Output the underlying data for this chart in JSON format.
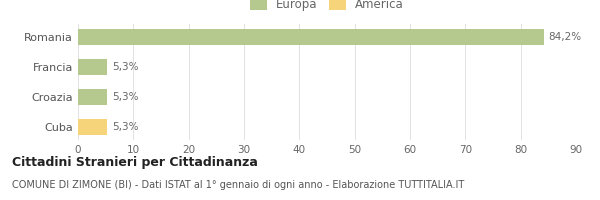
{
  "categories": [
    "Romania",
    "Francia",
    "Croazia",
    "Cuba"
  ],
  "values": [
    84.2,
    5.3,
    5.3,
    5.3
  ],
  "colors": [
    "#b5c98e",
    "#b5c98e",
    "#b5c98e",
    "#f5d47a"
  ],
  "bar_labels": [
    "84,2%",
    "5,3%",
    "5,3%",
    "5,3%"
  ],
  "xlim": [
    0,
    90
  ],
  "xticks": [
    0,
    10,
    20,
    30,
    40,
    50,
    60,
    70,
    80,
    90
  ],
  "legend_entries": [
    {
      "label": "Europa",
      "color": "#b5c98e"
    },
    {
      "label": "America",
      "color": "#f5d47a"
    }
  ],
  "title_bold": "Cittadini Stranieri per Cittadinanza",
  "subtitle": "COMUNE DI ZIMONE (BI) - Dati ISTAT al 1° gennaio di ogni anno - Elaborazione TUTTITALIA.IT",
  "background_color": "#ffffff",
  "bar_height": 0.52
}
